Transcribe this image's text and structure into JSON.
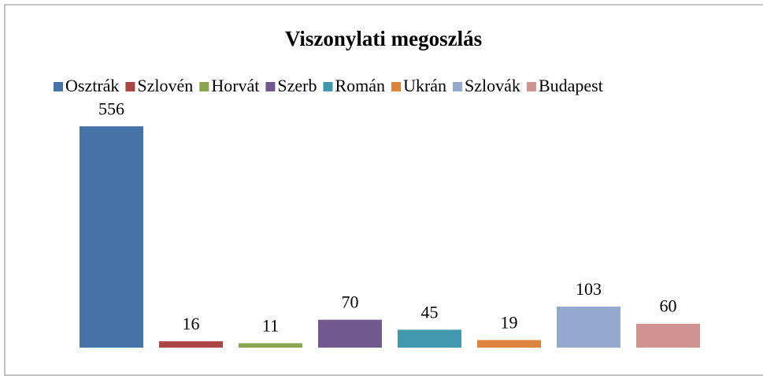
{
  "chart_data": {
    "type": "bar",
    "title": "Viszonylati megoszlás",
    "series": [
      {
        "name": "Osztrák",
        "color": "#4572a7",
        "values": [
          556
        ]
      },
      {
        "name": "Szlovén",
        "color": "#aa4643",
        "values": [
          16
        ]
      },
      {
        "name": "Horvát",
        "color": "#89a54e",
        "values": [
          11
        ]
      },
      {
        "name": "Szerb",
        "color": "#71588f",
        "values": [
          70
        ]
      },
      {
        "name": "Román",
        "color": "#4198af",
        "values": [
          45
        ]
      },
      {
        "name": "Ukrán",
        "color": "#db843d",
        "values": [
          19
        ]
      },
      {
        "name": "Szlovák",
        "color": "#93a9cf",
        "values": [
          103
        ]
      },
      {
        "name": "Budapest",
        "color": "#d19392",
        "values": [
          60
        ]
      }
    ],
    "ylim": [
      0,
      600
    ],
    "legend": "top"
  }
}
